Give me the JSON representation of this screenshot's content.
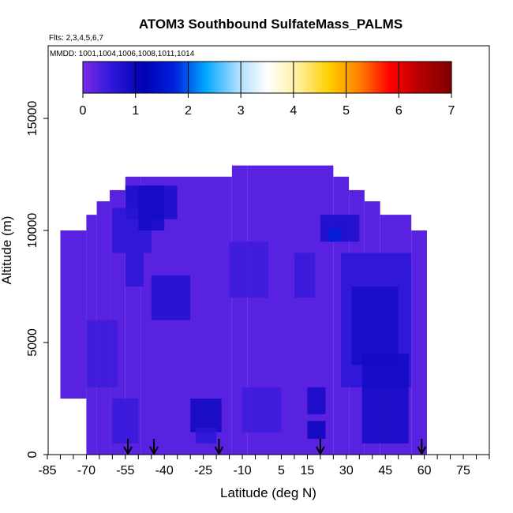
{
  "chart_data": {
    "type": "heatmap",
    "title": "ATOM3 Southbound SulfateMass_PALMS",
    "subtitle_flights": "Flts: 2,3,4,5,6,7",
    "subtitle_dates": "MMDD: 1001,1004,1006,1008,1011,1014",
    "xlabel": "Latitude (deg N)",
    "ylabel": "Altitude (m)",
    "xlim": [
      -85,
      85
    ],
    "ylim": [
      0,
      17500
    ],
    "x_ticks": [
      -85,
      -70,
      -55,
      -40,
      -25,
      -10,
      5,
      15,
      30,
      45,
      60,
      75
    ],
    "x_tick_labels": [
      "-85",
      "-70",
      "-55",
      "-40",
      "-25",
      "-10",
      "5",
      "15",
      "30",
      "45",
      "60",
      "75"
    ],
    "x_minor_step": 5,
    "y_ticks": [
      0,
      5000,
      10000,
      15000
    ],
    "y_tick_labels": [
      "0",
      "5000",
      "10000",
      "15000"
    ],
    "colorbar": {
      "ticks": [
        0,
        1,
        2,
        3,
        4,
        5,
        6,
        7
      ],
      "tick_labels": [
        "0",
        "1",
        "2",
        "3",
        "4",
        "5",
        "6",
        "7"
      ],
      "range": [
        0,
        7
      ],
      "colors": [
        "#7b2be8",
        "#2b16d8",
        "#0000b4",
        "#0022dd",
        "#00a8ff",
        "#a6dcff",
        "#ffffff",
        "#fff0a0",
        "#ffd000",
        "#ff8000",
        "#ff0000",
        "#b40000",
        "#800000"
      ]
    },
    "background_value": 0.25,
    "domain_top_by_lat": [
      {
        "x0": -80,
        "x1": -70,
        "top": 10000
      },
      {
        "x0": -70,
        "x1": -66,
        "top": 10700
      },
      {
        "x0": -66,
        "x1": -61,
        "top": 11300
      },
      {
        "x0": -61,
        "x1": -55,
        "top": 11800
      },
      {
        "x0": -55,
        "x1": -49,
        "top": 12400
      },
      {
        "x0": -49,
        "x1": -14,
        "top": 12400
      },
      {
        "x0": -14,
        "x1": -8,
        "top": 12900
      },
      {
        "x0": -8,
        "x1": 25,
        "top": 12900
      },
      {
        "x0": 25,
        "x1": 31,
        "top": 12400
      },
      {
        "x0": 31,
        "x1": 37,
        "top": 11800
      },
      {
        "x0": 37,
        "x1": 43,
        "top": 11300
      },
      {
        "x0": 43,
        "x1": 55,
        "top": 10700
      },
      {
        "x0": 55,
        "x1": 61,
        "top": 10000
      }
    ],
    "domain_bottom_by_lat": [
      {
        "x0": -80,
        "x1": -78,
        "bottom": 2500
      },
      {
        "x0": -78,
        "x1": -76,
        "bottom": 600
      },
      {
        "x0": -76,
        "x1": 59,
        "bottom": 0
      },
      {
        "x0": 59,
        "x1": 61,
        "bottom": 1100
      }
    ],
    "cells": [
      {
        "x0": -55,
        "x1": -35,
        "y0": 10500,
        "y1": 12000,
        "v": 0.8
      },
      {
        "x0": -60,
        "x1": -45,
        "y0": 9000,
        "y1": 11000,
        "v": 0.6
      },
      {
        "x0": -50,
        "x1": -40,
        "y0": 10000,
        "y1": 12000,
        "v": 0.9
      },
      {
        "x0": -45,
        "x1": -30,
        "y0": 6000,
        "y1": 8000,
        "v": 0.7
      },
      {
        "x0": -55,
        "x1": -48,
        "y0": 7500,
        "y1": 9000,
        "v": 0.6
      },
      {
        "x0": -30,
        "x1": -18,
        "y0": 1000,
        "y1": 2500,
        "v": 0.95
      },
      {
        "x0": -28,
        "x1": -20,
        "y0": 500,
        "y1": 1200,
        "v": 0.6
      },
      {
        "x0": 15,
        "x1": 22,
        "y0": 1800,
        "y1": 3000,
        "v": 0.9
      },
      {
        "x0": 15,
        "x1": 22,
        "y0": 700,
        "y1": 1500,
        "v": 1.0
      },
      {
        "x0": 20,
        "x1": 35,
        "y0": 9500,
        "y1": 10700,
        "v": 0.8
      },
      {
        "x0": 23,
        "x1": 28,
        "y0": 9500,
        "y1": 10100,
        "v": 1.7
      },
      {
        "x0": 28,
        "x1": 55,
        "y0": 3000,
        "y1": 9000,
        "v": 0.6
      },
      {
        "x0": 32,
        "x1": 50,
        "y0": 4000,
        "y1": 7500,
        "v": 0.85
      },
      {
        "x0": 36,
        "x1": 54,
        "y0": 500,
        "y1": 4500,
        "v": 0.9
      },
      {
        "x0": -70,
        "x1": -58,
        "y0": 3000,
        "y1": 6000,
        "v": 0.45
      },
      {
        "x0": -15,
        "x1": 0,
        "y0": 7000,
        "y1": 9500,
        "v": 0.45
      },
      {
        "x0": 10,
        "x1": 18,
        "y0": 7000,
        "y1": 9000,
        "v": 0.5
      },
      {
        "x0": -60,
        "x1": -50,
        "y0": 500,
        "y1": 2500,
        "v": 0.5
      },
      {
        "x0": -10,
        "x1": 5,
        "y0": 1000,
        "y1": 3000,
        "v": 0.45
      }
    ],
    "profile_arrows_lat": [
      -54,
      -44,
      -19,
      20,
      59
    ]
  }
}
